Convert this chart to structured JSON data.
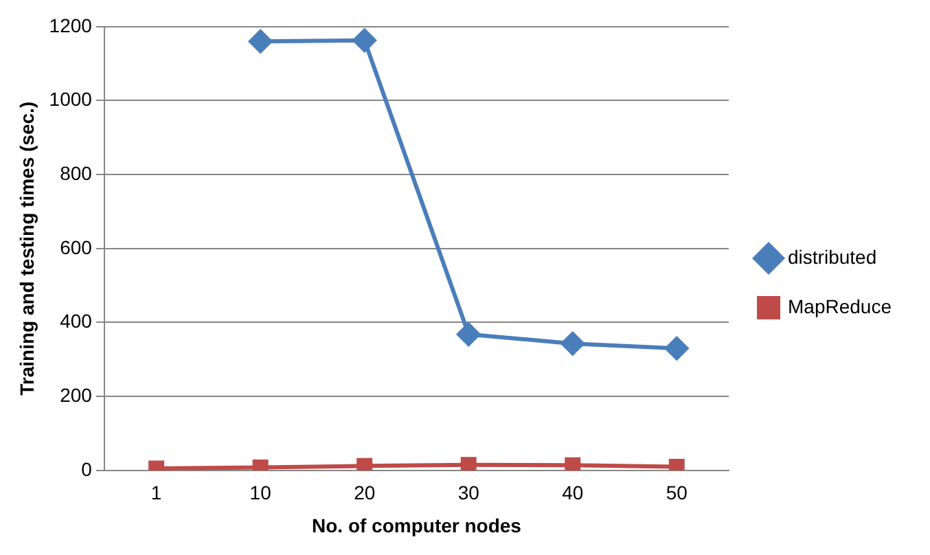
{
  "chart_data": {
    "type": "line",
    "xlabel": "No. of computer nodes",
    "ylabel": "Training and testing times (sec.)",
    "categories": [
      "1",
      "10",
      "20",
      "30",
      "40",
      "50"
    ],
    "series": [
      {
        "name": "distributed",
        "color": "#4a7ebb",
        "marker": "diamond",
        "values": [
          null,
          1160,
          1163,
          368,
          343,
          330
        ]
      },
      {
        "name": "MapReduce",
        "color": "#be4b48",
        "marker": "square",
        "values": [
          5,
          8,
          12,
          15,
          14,
          10
        ]
      }
    ],
    "ylim": [
      0,
      1200
    ],
    "yticks": [
      0,
      200,
      400,
      600,
      800,
      1000,
      1200
    ],
    "grid": "y",
    "legend": "right"
  }
}
